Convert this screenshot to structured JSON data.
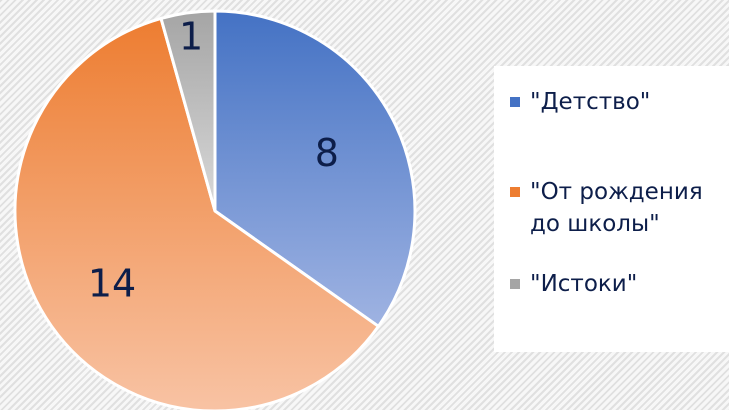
{
  "chart_data": {
    "type": "pie",
    "categories": [
      "\"Детство\"",
      "\"От рождения до школы\"",
      "\"Истоки\""
    ],
    "values": [
      8,
      14,
      1
    ],
    "data_labels": [
      "8",
      "14",
      "1"
    ],
    "colors": [
      "#4472c4",
      "#ed7d31",
      "#a5a5a5"
    ],
    "legend": {
      "placement": "right",
      "entries": [
        "\"Детство\"",
        "\"От рождения\nдо школы\"",
        "\"Истоки\""
      ]
    }
  }
}
